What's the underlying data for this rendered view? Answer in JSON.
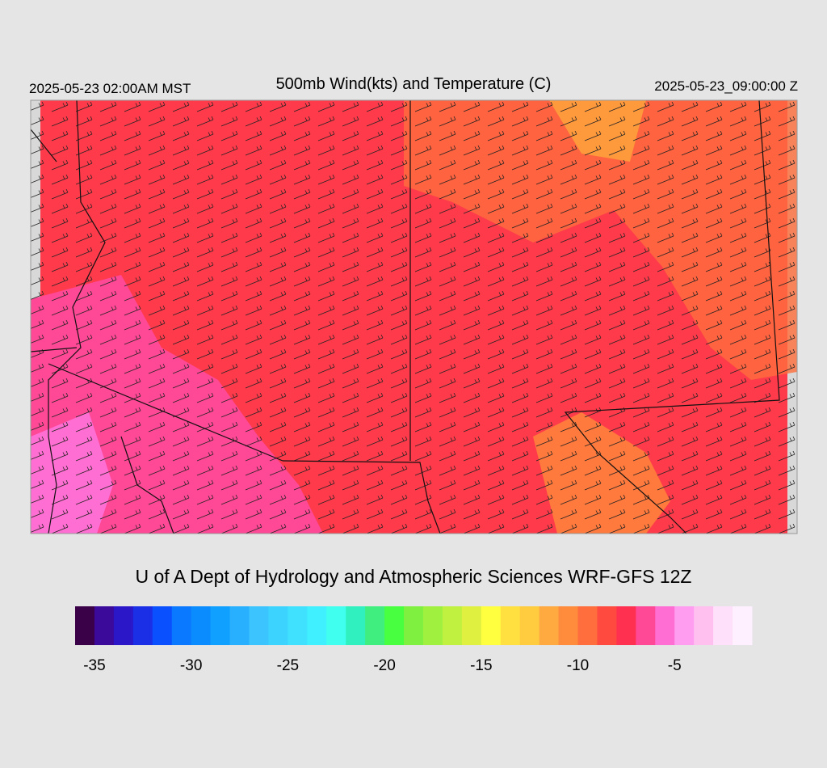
{
  "header": {
    "left": "2025-05-23 02:00AM MST",
    "title": "500mb Wind(kts) and Temperature (C)",
    "right": "2025-05-23_09:00:00 Z"
  },
  "credit": "U of A Dept of Hydrology and Atmospheric Sciences WRF-GFS 12Z",
  "colorbar": {
    "range": [
      -36,
      -1
    ],
    "colors": [
      "#3a0048",
      "#3c0a9a",
      "#2c17c8",
      "#1a2fe6",
      "#0a50ff",
      "#0a78ff",
      "#0a8cff",
      "#10a0ff",
      "#28b0ff",
      "#3cc4ff",
      "#3cd4ff",
      "#40e0ff",
      "#40f0ff",
      "#40ffee",
      "#30f0c0",
      "#40ee80",
      "#48ff40",
      "#80f040",
      "#a0f040",
      "#c0f040",
      "#e0f040",
      "#ffff40",
      "#ffe040",
      "#ffcc40",
      "#ffaa40",
      "#ff8c3c",
      "#ff6e3c",
      "#ff4a40",
      "#ff3050",
      "#ff4896",
      "#ff6ed2",
      "#ff9ef0",
      "#ffc0f0",
      "#ffe0fa",
      "#fff0ff"
    ],
    "ticks": [
      -35,
      -30,
      -25,
      -20,
      -15,
      -10,
      -5
    ]
  }
}
